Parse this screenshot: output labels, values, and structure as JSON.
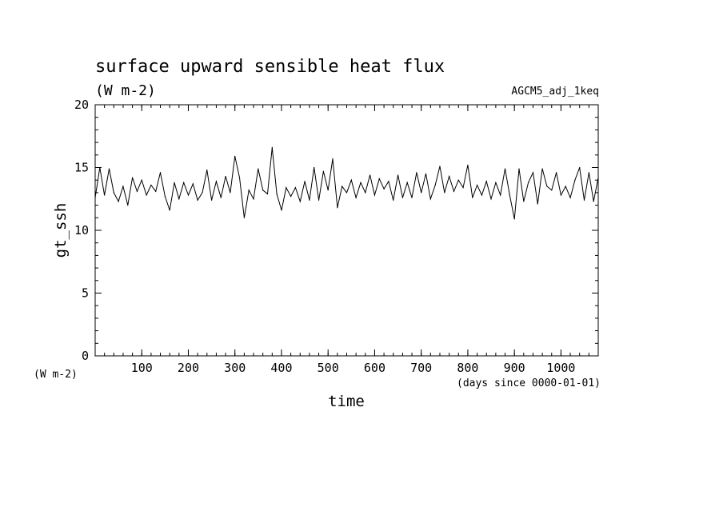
{
  "chart_data": {
    "type": "line",
    "title": "surface upward sensible heat flux",
    "subtitle": "(W m-2)",
    "experiment": "AGCM5_adj_1keq",
    "xlabel": "time",
    "x_units": "(days since 0000-01-01)",
    "ylabel": "gt_ssh",
    "y_units": "(W m-2)",
    "xlim": [
      0,
      1080
    ],
    "ylim": [
      0,
      20
    ],
    "x_ticks": [
      100,
      200,
      300,
      400,
      500,
      600,
      700,
      800,
      900,
      1000
    ],
    "y_ticks": [
      0,
      5,
      10,
      15,
      20
    ],
    "x_minor_step": 20,
    "y_minor_step": 1,
    "grid": false,
    "line_color": "#000000",
    "series": [
      {
        "x": [
          0,
          10,
          20,
          30,
          40,
          50,
          60,
          70,
          80,
          90,
          100,
          110,
          120,
          130,
          140,
          150,
          160,
          170,
          180,
          190,
          200,
          210,
          220,
          230,
          240,
          250,
          260,
          270,
          280,
          290,
          300,
          310,
          320,
          330,
          340,
          350,
          360,
          370,
          380,
          390,
          400,
          410,
          420,
          430,
          440,
          450,
          460,
          470,
          480,
          490,
          500,
          510,
          520,
          530,
          540,
          550,
          560,
          570,
          580,
          590,
          600,
          610,
          620,
          630,
          640,
          650,
          660,
          670,
          680,
          690,
          700,
          710,
          720,
          730,
          740,
          750,
          760,
          770,
          780,
          790,
          800,
          810,
          820,
          830,
          840,
          850,
          860,
          870,
          880,
          890,
          900,
          910,
          920,
          930,
          940,
          950,
          960,
          970,
          980,
          990,
          1000,
          1010,
          1020,
          1030,
          1040,
          1050,
          1060,
          1070,
          1080
        ],
        "values": [
          12.6,
          15.0,
          12.8,
          14.9,
          13.0,
          12.3,
          13.5,
          12.0,
          14.2,
          13.1,
          14.0,
          12.8,
          13.6,
          13.1,
          14.6,
          12.7,
          11.6,
          13.8,
          12.5,
          13.8,
          12.8,
          13.7,
          12.4,
          13.0,
          14.8,
          12.4,
          13.9,
          12.6,
          14.3,
          13.0,
          15.9,
          14.2,
          11.0,
          13.2,
          12.5,
          14.9,
          13.2,
          12.9,
          16.6,
          12.9,
          11.6,
          13.4,
          12.7,
          13.4,
          12.3,
          13.9,
          12.4,
          15.0,
          12.4,
          14.7,
          13.2,
          15.7,
          11.8,
          13.5,
          13.0,
          14.0,
          12.6,
          13.8,
          13.0,
          14.4,
          12.8,
          14.1,
          13.3,
          13.9,
          12.4,
          14.4,
          12.6,
          13.8,
          12.6,
          14.6,
          13.0,
          14.5,
          12.5,
          13.6,
          15.1,
          13.0,
          14.3,
          13.1,
          14.0,
          13.4,
          15.2,
          12.6,
          13.6,
          12.8,
          13.9,
          12.5,
          13.8,
          12.8,
          14.9,
          12.8,
          10.9,
          14.9,
          12.3,
          13.8,
          14.6,
          12.1,
          14.9,
          13.5,
          13.2,
          14.6,
          12.8,
          13.5,
          12.6,
          14.0,
          15.0,
          12.4,
          14.6,
          12.3,
          14.2
        ]
      }
    ]
  }
}
